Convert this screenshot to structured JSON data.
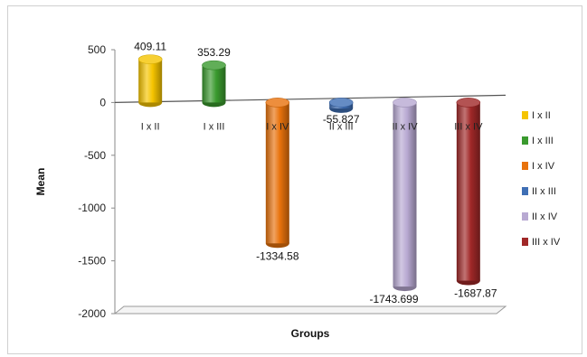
{
  "chart_data": {
    "type": "bar",
    "style": "3d-cylinder",
    "categories": [
      "I x II",
      "I x III",
      "I x IV",
      "II x III",
      "II x IV",
      "III x IV"
    ],
    "values": [
      409.11,
      353.29,
      -1334.58,
      -55.827,
      -1743.699,
      -1687.87
    ],
    "data_labels": [
      "409.11",
      "353.29",
      "-1334.58",
      "-55.827",
      "-1743.699",
      "-1687.87"
    ],
    "colors": [
      "#f5c400",
      "#3a9a2e",
      "#e8720c",
      "#3f6fb5",
      "#b8a9d2",
      "#a02828"
    ],
    "xlabel": "Groups",
    "ylabel": "Mean",
    "ylim": [
      -2000,
      500
    ],
    "yticks": [
      500,
      0,
      -500,
      -1000,
      -1500,
      -2000
    ],
    "legend": {
      "position": "right",
      "entries": [
        "I x II",
        "I x III",
        "I x IV",
        "II x III",
        "II x IV",
        "III x IV"
      ]
    },
    "grid": false
  }
}
